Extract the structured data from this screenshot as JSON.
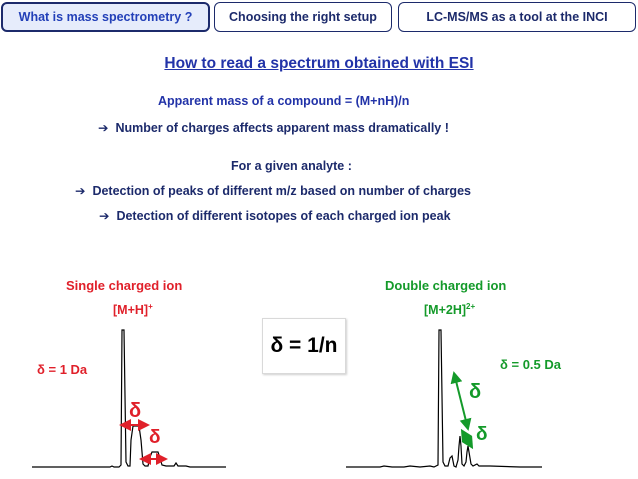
{
  "tabs": [
    {
      "label": "What is mass spectrometry ?",
      "active": true
    },
    {
      "label": "Choosing the right setup",
      "active": false
    },
    {
      "label": "LC-MS/MS as a tool at the INCI",
      "active": false
    }
  ],
  "title": "How to read a spectrum obtained with ESI",
  "apparent_mass": "Apparent mass of a compound = (M+nH)/n",
  "bullet_charges": "Number of charges affects apparent mass dramatically !",
  "for_analyte": "For a given analyte :",
  "bullet_peaks": "Detection of peaks of different m/z based on number of charges",
  "bullet_isotopes": "Detection of different isotopes of each charged ion peak",
  "single": {
    "heading": "Single charged ion",
    "ion_base": "[M+H]",
    "ion_sup": "+",
    "delta_label": "δ = 1 Da",
    "delta_symbol": "δ"
  },
  "double": {
    "heading": "Double charged ion",
    "ion_base": "[M+2H]",
    "ion_sup": "2+",
    "delta_label": "δ = 0.5 Da",
    "delta_symbol": "δ"
  },
  "center_formula": "δ = 1/n",
  "colors": {
    "navy": "#1c2a6b",
    "title_blue": "#2233a8",
    "red": "#e0202a",
    "green": "#149a2a"
  },
  "icons": {
    "bullet": "arrow-right-icon"
  }
}
